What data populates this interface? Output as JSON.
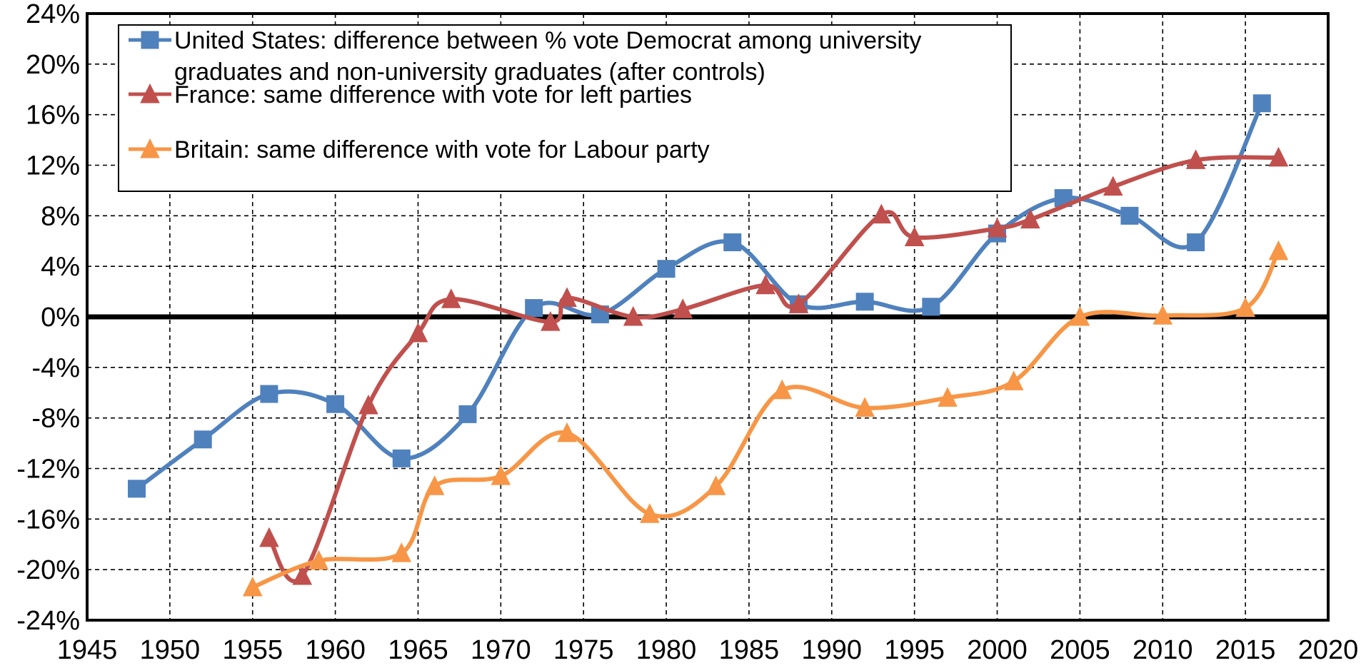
{
  "chart_data": {
    "type": "line",
    "title": "",
    "xlabel": "",
    "ylabel": "",
    "xlim": [
      1945,
      2020
    ],
    "ylim": [
      -24,
      24
    ],
    "x_ticks": [
      "1945",
      "1950",
      "1955",
      "1960",
      "1965",
      "1970",
      "1975",
      "1980",
      "1985",
      "1990",
      "1995",
      "2000",
      "2005",
      "2010",
      "2015",
      "2020"
    ],
    "y_ticks": [
      "-24%",
      "-20%",
      "-16%",
      "-12%",
      "-8%",
      "-4%",
      "0%",
      "4%",
      "8%",
      "12%",
      "16%",
      "20%",
      "24%"
    ],
    "grid": true,
    "zero_line": true,
    "legend_position": "top-left",
    "series": [
      {
        "name_lines": [
          "United States: difference between % vote Democrat among university",
          "graduates and non-university graduates (after controls)"
        ],
        "color": "#4f81bd",
        "marker": "square",
        "x": [
          1948,
          1952,
          1956,
          1960,
          1964,
          1968,
          1972,
          1976,
          1980,
          1984,
          1988,
          1992,
          1996,
          2000,
          2004,
          2008,
          2012,
          2016
        ],
        "y": [
          -13.6,
          -9.7,
          -6.1,
          -6.9,
          -11.2,
          -7.7,
          0.7,
          0.2,
          3.8,
          5.9,
          1.0,
          1.2,
          0.8,
          6.6,
          9.4,
          8.0,
          5.9,
          16.9
        ]
      },
      {
        "name_lines": [
          "France: same difference with vote for left parties"
        ],
        "color": "#c0504d",
        "marker": "triangle",
        "x": [
          1956,
          1958,
          1962,
          1965,
          1967,
          1973,
          1974,
          1978,
          1981,
          1986,
          1988,
          1993,
          1995,
          2000,
          2002,
          2007,
          2012,
          2017
        ],
        "y": [
          -17.5,
          -20.5,
          -7.0,
          -1.3,
          1.4,
          -0.4,
          1.5,
          0.0,
          0.6,
          2.5,
          1.0,
          8.1,
          6.3,
          7.0,
          7.7,
          10.3,
          12.4,
          12.6
        ]
      },
      {
        "name_lines": [
          "Britain: same difference with vote for Labour party"
        ],
        "color": "#f79646",
        "marker": "triangle",
        "x": [
          1955,
          1959,
          1964,
          1966,
          1970,
          1974,
          1979,
          1983,
          1987,
          1992,
          1997,
          2001,
          2005,
          2010,
          2015,
          2017
        ],
        "y": [
          -21.4,
          -19.3,
          -18.7,
          -13.4,
          -12.6,
          -9.2,
          -15.6,
          -13.4,
          -5.8,
          -7.2,
          -6.4,
          -5.1,
          0.0,
          0.1,
          0.7,
          5.2
        ]
      }
    ]
  }
}
